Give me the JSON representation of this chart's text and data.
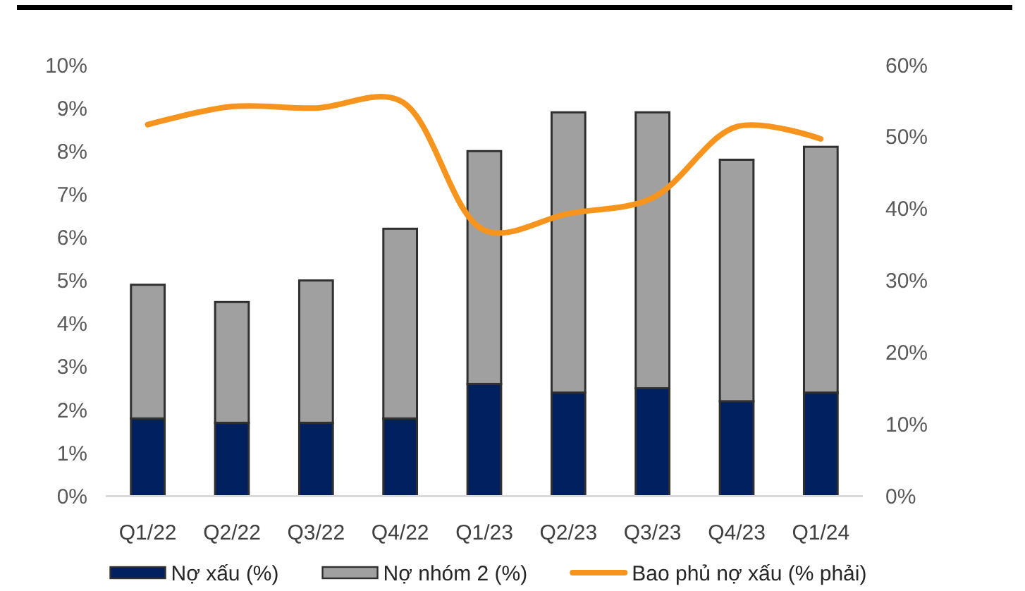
{
  "chart_data": {
    "type": "bar",
    "stacked": true,
    "categories": [
      "Q1/22",
      "Q2/22",
      "Q3/22",
      "Q4/22",
      "Q1/23",
      "Q2/23",
      "Q3/23",
      "Q4/23",
      "Q1/24"
    ],
    "series": [
      {
        "name": "Nợ xấu (%)",
        "color": "#002060",
        "values": [
          1.8,
          1.7,
          1.7,
          1.8,
          2.6,
          2.4,
          2.5,
          2.2,
          2.4
        ]
      },
      {
        "name": "Nợ nhóm 2 (%)",
        "color": "#a0a0a0",
        "values": [
          3.1,
          2.8,
          3.3,
          4.4,
          5.4,
          6.5,
          6.4,
          5.6,
          5.7
        ]
      },
      {
        "name": "Bao phủ nợ xấu (% phải)",
        "type": "line",
        "axis": "y2",
        "color": "#f7941d",
        "values": [
          51.7,
          54.2,
          54.0,
          55.0,
          37.0,
          39.3,
          41.5,
          51.4,
          49.7
        ]
      }
    ],
    "ylim": [
      0,
      10
    ],
    "yticks": [
      {
        "value": 0,
        "label": "0%"
      },
      {
        "value": 1,
        "label": "1%"
      },
      {
        "value": 2,
        "label": "2%"
      },
      {
        "value": 3,
        "label": "3%"
      },
      {
        "value": 4,
        "label": "4%"
      },
      {
        "value": 5,
        "label": "5%"
      },
      {
        "value": 6,
        "label": "6%"
      },
      {
        "value": 7,
        "label": "7%"
      },
      {
        "value": 8,
        "label": "8%"
      },
      {
        "value": 9,
        "label": "9%"
      },
      {
        "value": 10,
        "label": "10%"
      }
    ],
    "y2lim": [
      0,
      60
    ],
    "y2ticks": [
      {
        "value": 0,
        "label": "0%"
      },
      {
        "value": 10,
        "label": "10%"
      },
      {
        "value": 20,
        "label": "20%"
      },
      {
        "value": 30,
        "label": "30%"
      },
      {
        "value": 40,
        "label": "40%"
      },
      {
        "value": 50,
        "label": "50%"
      },
      {
        "value": 60,
        "label": "60%"
      }
    ],
    "legend": "bottom"
  }
}
